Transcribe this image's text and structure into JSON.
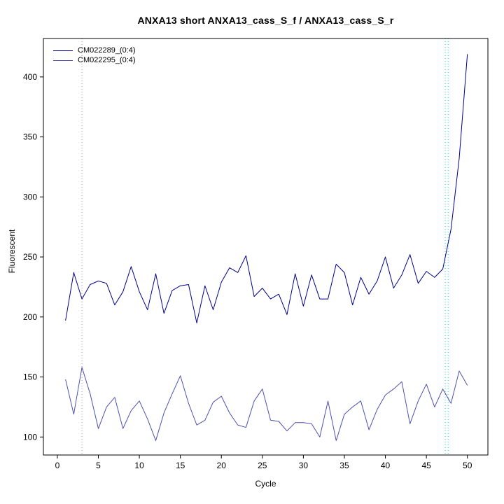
{
  "page": {
    "background": "#ffffff"
  },
  "chart_data": {
    "type": "line",
    "title": "ANXA13 short ANXA13_cass_S_f / ANXA13_cass_S_r",
    "xlabel": "Cycle",
    "ylabel": "Fluorescent",
    "xlim": [
      -1.7,
      52.5
    ],
    "ylim": [
      85,
      432
    ],
    "x_ticks": [
      0,
      5,
      10,
      15,
      20,
      25,
      30,
      35,
      40,
      45,
      50
    ],
    "y_ticks": [
      100,
      150,
      200,
      250,
      300,
      350,
      400
    ],
    "grid": false,
    "legend_position": "top-left-inside",
    "x": [
      1,
      2,
      3,
      4,
      5,
      6,
      7,
      8,
      9,
      10,
      11,
      12,
      13,
      14,
      15,
      16,
      17,
      18,
      19,
      20,
      21,
      22,
      23,
      24,
      25,
      26,
      27,
      28,
      29,
      30,
      31,
      32,
      33,
      34,
      35,
      36,
      37,
      38,
      39,
      40,
      41,
      42,
      43,
      44,
      45,
      46,
      47,
      48,
      49,
      50
    ],
    "series": [
      {
        "name": "CM022289_(0:4)",
        "color": "#00008b",
        "values": [
          197,
          237,
          215,
          227,
          230,
          228,
          210,
          221,
          242,
          221,
          206,
          236,
          203,
          222,
          226,
          227,
          195,
          226,
          206,
          229,
          241,
          237,
          251,
          217,
          224,
          215,
          219,
          202,
          236,
          209,
          235,
          215,
          215,
          244,
          237,
          210,
          233,
          219,
          230,
          250,
          224,
          235,
          252,
          228,
          238,
          233,
          240,
          273,
          332,
          419
        ]
      },
      {
        "name": "CM022295_(0:4)",
        "color": "#4f4fb0",
        "values": [
          148,
          119,
          158,
          136,
          107,
          125,
          133,
          107,
          122,
          130,
          115,
          97,
          120,
          136,
          151,
          128,
          110,
          114,
          129,
          134,
          120,
          110,
          108,
          130,
          140,
          114,
          113,
          105,
          112,
          112,
          111,
          100,
          130,
          97,
          119,
          125,
          130,
          106,
          123,
          135,
          140,
          146,
          111,
          130,
          144,
          125,
          140,
          128,
          155,
          143
        ]
      }
    ],
    "vlines": [
      {
        "x": 3,
        "color": "#9a9a9a",
        "width": 1
      },
      {
        "x": 47.3,
        "color": "#00d5ee",
        "width": 1
      },
      {
        "x": 47.65,
        "color": "#00d5ee",
        "width": 1
      }
    ]
  }
}
